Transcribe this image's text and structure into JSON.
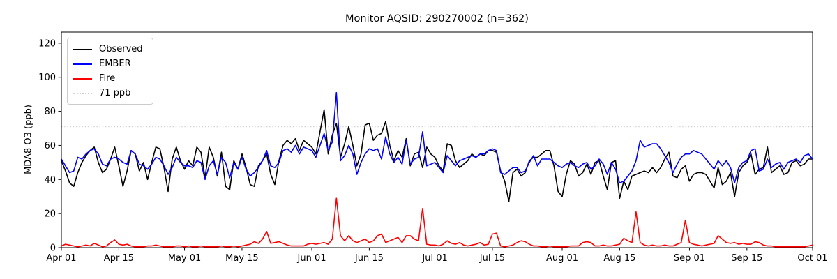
{
  "chart_data": {
    "type": "line",
    "title": "Monitor AQSID: 290270002 (n=362)",
    "ylabel": "MDA8 O3 (ppb)",
    "xlabel": "",
    "x_unit": "day",
    "x_start": "Apr 01",
    "x_end": "Oct 01",
    "points_per_series": 184,
    "x_tick_labels": [
      "Apr 01",
      "Apr 15",
      "May 01",
      "May 15",
      "Jun 01",
      "Jun 15",
      "Jul 01",
      "Jul 15",
      "Aug 01",
      "Aug 15",
      "Sep 01",
      "Sep 15",
      "Oct 01"
    ],
    "x_tick_day_index": [
      0,
      14,
      30,
      44,
      61,
      75,
      91,
      105,
      122,
      136,
      153,
      167,
      183
    ],
    "y_ticks": [
      0,
      20,
      40,
      60,
      80,
      100,
      120
    ],
    "ylim": [
      0,
      126.5
    ],
    "grid": false,
    "legend_position": "upper left",
    "threshold_line": {
      "label": "71 ppb",
      "value": 71,
      "color": "#d3d3d3",
      "linestyle": "dotted"
    },
    "series": [
      {
        "name": "Observed",
        "color": "#000000",
        "linestyle": "solid",
        "values": [
          51,
          45,
          38,
          36,
          44,
          50,
          54,
          57,
          59,
          50,
          44,
          46,
          52,
          59,
          48,
          36,
          45,
          57,
          55,
          45,
          50,
          40,
          50,
          59,
          58,
          47,
          33,
          52,
          59,
          51,
          46,
          51,
          48,
          59,
          56,
          41,
          59,
          53,
          42,
          56,
          36,
          34,
          51,
          46,
          55,
          47,
          37,
          36,
          48,
          51,
          55,
          43,
          37,
          51,
          60,
          63,
          61,
          64,
          57,
          63,
          61,
          59,
          55,
          68,
          81,
          55,
          66,
          73,
          53,
          61,
          71,
          60,
          48,
          55,
          72,
          73,
          63,
          66,
          67,
          74,
          60,
          51,
          57,
          53,
          64,
          48,
          55,
          56,
          47,
          59,
          55,
          53,
          48,
          45,
          61,
          60,
          51,
          47,
          49,
          51,
          55,
          53,
          55,
          54,
          57,
          57,
          56,
          45,
          39,
          27,
          44,
          46,
          42,
          44,
          51,
          53,
          53,
          55,
          57,
          57,
          48,
          33,
          30,
          43,
          51,
          49,
          42,
          44,
          49,
          43,
          50,
          51,
          42,
          34,
          50,
          51,
          29,
          39,
          34,
          42,
          43,
          44,
          45,
          44,
          47,
          44,
          47,
          52,
          56,
          42,
          41,
          46,
          48,
          39,
          43,
          44,
          44,
          43,
          39,
          35,
          47,
          37,
          39,
          44,
          30,
          44,
          48,
          50,
          55,
          43,
          46,
          47,
          59,
          44,
          46,
          48,
          43,
          44,
          50,
          51,
          48,
          49,
          52,
          52
        ]
      },
      {
        "name": "EMBER",
        "color": "#0000ff",
        "linestyle": "solid",
        "values": [
          52,
          48,
          44,
          45,
          53,
          52,
          55,
          57,
          58,
          55,
          49,
          48,
          52,
          53,
          52,
          50,
          49,
          57,
          55,
          49,
          48,
          46,
          49,
          53,
          52,
          48,
          43,
          47,
          53,
          50,
          48,
          48,
          47,
          51,
          50,
          40,
          48,
          51,
          43,
          53,
          50,
          41,
          50,
          46,
          53,
          46,
          42,
          44,
          47,
          51,
          57,
          48,
          47,
          50,
          57,
          58,
          56,
          60,
          55,
          59,
          58,
          57,
          53,
          60,
          67,
          57,
          62,
          91,
          51,
          54,
          60,
          55,
          43,
          50,
          55,
          58,
          57,
          58,
          52,
          65,
          55,
          50,
          53,
          49,
          63,
          49,
          52,
          53,
          68,
          48,
          49,
          50,
          47,
          44,
          54,
          51,
          48,
          51,
          52,
          53,
          54,
          53,
          55,
          55,
          57,
          58,
          57,
          44,
          43,
          45,
          47,
          47,
          44,
          45,
          50,
          54,
          48,
          52,
          52,
          52,
          50,
          48,
          47,
          49,
          50,
          48,
          47,
          49,
          50,
          46,
          48,
          52,
          49,
          43,
          50,
          46,
          38,
          39,
          42,
          45,
          51,
          63,
          59,
          60,
          61,
          61,
          58,
          54,
          50,
          44,
          49,
          53,
          55,
          55,
          57,
          56,
          55,
          52,
          49,
          46,
          51,
          48,
          51,
          47,
          38,
          47,
          50,
          51,
          57,
          58,
          45,
          46,
          52,
          47,
          49,
          50,
          46,
          50,
          51,
          52,
          50,
          54,
          55,
          52
        ]
      },
      {
        "name": "Fire",
        "color": "#ff0000",
        "linestyle": "solid",
        "values": [
          1,
          2,
          1.5,
          1,
          0.5,
          1,
          1.5,
          1,
          2.5,
          1.5,
          0.5,
          1,
          3,
          4.5,
          2,
          1.5,
          2,
          1,
          0.5,
          0.5,
          0.5,
          1,
          1,
          1.5,
          1,
          0.5,
          0.5,
          0.5,
          1,
          1,
          0.5,
          1,
          0.5,
          0.5,
          1,
          0.5,
          0.5,
          0.5,
          0.5,
          1,
          0.5,
          0.5,
          1,
          0.5,
          1,
          1.5,
          2,
          3.5,
          2.5,
          5,
          9.5,
          2.5,
          3,
          3.5,
          2.5,
          1.5,
          1,
          1,
          1,
          1,
          2,
          2.5,
          2,
          2.5,
          3,
          2,
          5,
          29,
          7,
          4,
          7,
          4,
          3,
          4,
          5,
          3,
          4,
          7,
          8,
          3,
          4,
          5,
          6,
          3,
          7,
          7,
          5,
          4,
          23,
          2,
          1.5,
          1.5,
          1,
          2,
          4,
          2.5,
          2,
          3,
          1.5,
          1,
          1.5,
          2,
          3,
          1.5,
          2,
          8,
          8.5,
          1,
          0.5,
          1,
          1.5,
          3,
          4,
          3.5,
          2,
          1,
          1,
          0.5,
          0.5,
          1,
          0.5,
          0.5,
          0.5,
          0.5,
          1,
          1,
          1,
          3,
          3.5,
          3,
          1,
          1,
          1.5,
          1,
          1,
          1.5,
          2,
          5.5,
          4,
          3,
          21,
          3,
          1.5,
          1,
          1.5,
          1,
          1,
          1.5,
          1,
          1,
          2,
          3,
          16,
          3,
          2,
          1.5,
          1,
          1.5,
          2,
          2.5,
          7,
          5,
          3,
          2.5,
          3,
          2,
          2.5,
          2,
          2,
          3.5,
          3,
          1.5,
          1,
          1,
          0.5,
          0.5,
          0.5,
          0.5,
          0.5,
          0.5,
          0.5,
          0.5,
          1,
          1.5
        ]
      }
    ]
  },
  "legend": {
    "items": [
      {
        "label": "Observed",
        "color": "#000000",
        "linestyle": "solid"
      },
      {
        "label": "EMBER",
        "color": "#0000ff",
        "linestyle": "solid"
      },
      {
        "label": "Fire",
        "color": "#ff0000",
        "linestyle": "solid"
      },
      {
        "label": "71 ppb",
        "color": "#d3d3d3",
        "linestyle": "dotted"
      }
    ]
  },
  "colors": {
    "axis": "#000000",
    "background": "#ffffff",
    "threshold": "#d3d3d3"
  }
}
